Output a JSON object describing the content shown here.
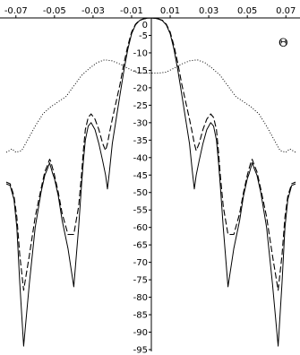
{
  "chart_data": {
    "type": "line",
    "title": "",
    "xlabel": "",
    "ylabel": "",
    "axis_symbol": "Θ",
    "xlim": [
      -0.075,
      0.075
    ],
    "ylim": [
      -95,
      0
    ],
    "x_ticks": [
      -0.07,
      -0.05,
      -0.03,
      -0.01,
      0.01,
      0.03,
      0.05,
      0.07
    ],
    "x_tick_labels": [
      "-0.07",
      "-0.05",
      "-0.03",
      "-0.01",
      "0.01",
      "0.03",
      "0.05",
      "0.07"
    ],
    "y_ticks": [
      -5,
      -10,
      -15,
      -20,
      -25,
      -30,
      -35,
      -40,
      -45,
      -50,
      -55,
      -60,
      -65,
      -70,
      -75,
      -80,
      -85,
      -90,
      -95
    ],
    "y_tick_labels": [
      "-5",
      "-10",
      "-15",
      "-20",
      "-25",
      "-30",
      "-35",
      "-40",
      "-45",
      "-50",
      "-55",
      "-60",
      "-65",
      "-70",
      "-75",
      "-80",
      "-85",
      "-90",
      "-95"
    ],
    "y_zero_label": "0",
    "grid": false,
    "series": [
      {
        "style": "solid",
        "color": "#000000",
        "x": [
          -0.075,
          -0.073,
          -0.071,
          -0.0695,
          -0.068,
          -0.066,
          -0.063,
          -0.06,
          -0.057,
          -0.055,
          -0.0535,
          -0.0525,
          -0.052,
          -0.051,
          -0.05,
          -0.048,
          -0.046,
          -0.043,
          -0.04,
          -0.0375,
          -0.036,
          -0.035,
          -0.034,
          -0.0325,
          -0.031,
          -0.029,
          -0.027,
          -0.025,
          -0.0235,
          -0.0225,
          -0.0215,
          -0.02,
          -0.018,
          -0.016,
          -0.014,
          -0.012,
          -0.01,
          -0.008,
          -0.006,
          -0.004,
          -0.002,
          0.0,
          0.002,
          0.004,
          0.006,
          0.008,
          0.01,
          0.012,
          0.014,
          0.016,
          0.018,
          0.02,
          0.0215,
          0.0225,
          0.0235,
          0.025,
          0.027,
          0.029,
          0.031,
          0.0325,
          0.034,
          0.035,
          0.036,
          0.0375,
          0.04,
          0.043,
          0.046,
          0.048,
          0.05,
          0.051,
          0.052,
          0.0525,
          0.0535,
          0.055,
          0.057,
          0.06,
          0.063,
          0.066,
          0.068,
          0.0695,
          0.071,
          0.073,
          0.075
        ],
        "y": [
          -47.5,
          -48,
          -52,
          -60,
          -76,
          -94,
          -76,
          -60,
          -50,
          -45,
          -43,
          -41.5,
          -42.5,
          -44.5,
          -46,
          -51,
          -58,
          -66,
          -77,
          -60,
          -48,
          -41,
          -35,
          -31,
          -30,
          -32,
          -36,
          -41,
          -45,
          -49,
          -44,
          -36,
          -29,
          -22,
          -15,
          -9,
          -4.5,
          -2,
          -0.8,
          -0.3,
          -0.1,
          0,
          -0.1,
          -0.3,
          -0.8,
          -2,
          -4.5,
          -9,
          -15,
          -22,
          -29,
          -36,
          -44,
          -49,
          -45,
          -41,
          -36,
          -32,
          -30,
          -31,
          -35,
          -41,
          -48,
          -60,
          -77,
          -66,
          -58,
          -51,
          -46,
          -44.5,
          -42.5,
          -41.5,
          -43,
          -45,
          -50,
          -60,
          -76,
          -94,
          -76,
          -60,
          -52,
          -48,
          -47.5
        ]
      },
      {
        "style": "dashed",
        "color": "#000000",
        "x": [
          -0.075,
          -0.073,
          -0.071,
          -0.0695,
          -0.068,
          -0.066,
          -0.063,
          -0.06,
          -0.057,
          -0.055,
          -0.0535,
          -0.0525,
          -0.052,
          -0.051,
          -0.05,
          -0.048,
          -0.046,
          -0.043,
          -0.04,
          -0.0375,
          -0.036,
          -0.035,
          -0.034,
          -0.0325,
          -0.031,
          -0.029,
          -0.027,
          -0.025,
          -0.0235,
          -0.0225,
          -0.0215,
          -0.02,
          -0.018,
          -0.016,
          -0.014,
          -0.012,
          -0.01,
          -0.008,
          -0.006,
          -0.004,
          -0.002,
          0.0,
          0.002,
          0.004,
          0.006,
          0.008,
          0.01,
          0.012,
          0.014,
          0.016,
          0.018,
          0.02,
          0.0215,
          0.0225,
          0.0235,
          0.025,
          0.027,
          0.029,
          0.031,
          0.0325,
          0.034,
          0.035,
          0.036,
          0.0375,
          0.04,
          0.043,
          0.046,
          0.048,
          0.05,
          0.051,
          0.052,
          0.0525,
          0.0535,
          0.055,
          0.057,
          0.06,
          0.063,
          0.066,
          0.068,
          0.0695,
          0.071,
          0.073,
          0.075
        ],
        "y": [
          -47,
          -47.5,
          -51,
          -57,
          -68,
          -78,
          -68,
          -57,
          -49,
          -44,
          -42,
          -40.5,
          -41,
          -43,
          -45,
          -50,
          -56,
          -62,
          -62,
          -54,
          -45,
          -38,
          -32,
          -28.5,
          -27.5,
          -29,
          -32,
          -36,
          -38,
          -36,
          -33,
          -29,
          -24,
          -19,
          -13,
          -8,
          -4,
          -1.8,
          -0.7,
          -0.3,
          -0.1,
          0,
          -0.1,
          -0.3,
          -0.7,
          -1.8,
          -4,
          -8,
          -13,
          -19,
          -24,
          -29,
          -33,
          -36,
          -38,
          -36,
          -32,
          -29,
          -27.5,
          -28.5,
          -32,
          -38,
          -45,
          -54,
          -62,
          -62,
          -56,
          -50,
          -45,
          -43,
          -41,
          -40.5,
          -42,
          -44,
          -49,
          -57,
          -68,
          -78,
          -68,
          -57,
          -51,
          -47.5,
          -47
        ]
      },
      {
        "style": "dotted",
        "color": "#000000",
        "x": [
          -0.075,
          -0.072,
          -0.07,
          -0.067,
          -0.064,
          -0.06,
          -0.056,
          -0.052,
          -0.048,
          -0.044,
          -0.04,
          -0.036,
          -0.032,
          -0.028,
          -0.024,
          -0.02,
          -0.016,
          -0.012,
          -0.008,
          -0.004,
          0.0,
          0.004,
          0.008,
          0.012,
          0.016,
          0.02,
          0.024,
          0.028,
          0.032,
          0.036,
          0.04,
          0.044,
          0.048,
          0.052,
          0.056,
          0.06,
          0.064,
          0.067,
          0.07,
          0.072,
          0.075
        ],
        "y": [
          -38.5,
          -37.5,
          -38.5,
          -38,
          -35,
          -31,
          -27.5,
          -25.5,
          -24,
          -22.5,
          -19.5,
          -16.5,
          -14.5,
          -12.8,
          -12,
          -12.3,
          -13.2,
          -14.4,
          -15.5,
          -15.8,
          -15.8,
          -15.8,
          -15.5,
          -14.4,
          -13.2,
          -12.3,
          -12,
          -12.8,
          -14.5,
          -16.5,
          -19.5,
          -22.5,
          -24,
          -25.5,
          -27.5,
          -31,
          -35,
          -38,
          -38.5,
          -37.5,
          -38.5
        ]
      }
    ]
  }
}
